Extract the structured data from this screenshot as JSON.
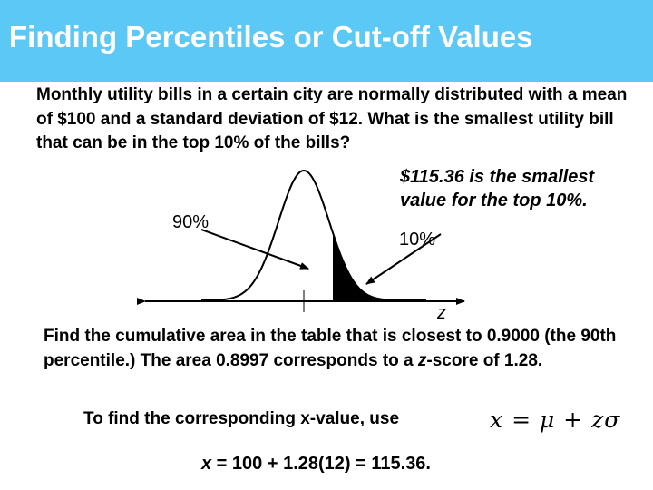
{
  "header": {
    "title": "Finding Percentiles or Cut-off Values",
    "background_color": "#5bc8f5"
  },
  "problem_text": "Monthly utility bills in a certain city are normally distributed with a mean of $100 and a standard deviation of $12. What is the smallest utility bill that can be in the top 10% of the bills?",
  "diagram": {
    "answer_note": "$115.36 is the smallest value for the top 10%.",
    "left_area_label": "90%",
    "right_area_label": "10%",
    "axis_label": "z"
  },
  "explanation": {
    "part1": "Find the cumulative area in the table that is closest to 0.9000 (the 90th percentile.) The area  0.8997 corresponds to a ",
    "z_word": "z",
    "part2": "-score of 1.28."
  },
  "formula": {
    "lead_text": "To find the corresponding x-value, use",
    "lhs": "x",
    "equals": "=",
    "mu": "μ",
    "plus": "+",
    "z": "z",
    "sigma": "σ"
  },
  "computation": {
    "variable": "x",
    "rest": " = 100 + 1.28(12) = 115.36."
  }
}
